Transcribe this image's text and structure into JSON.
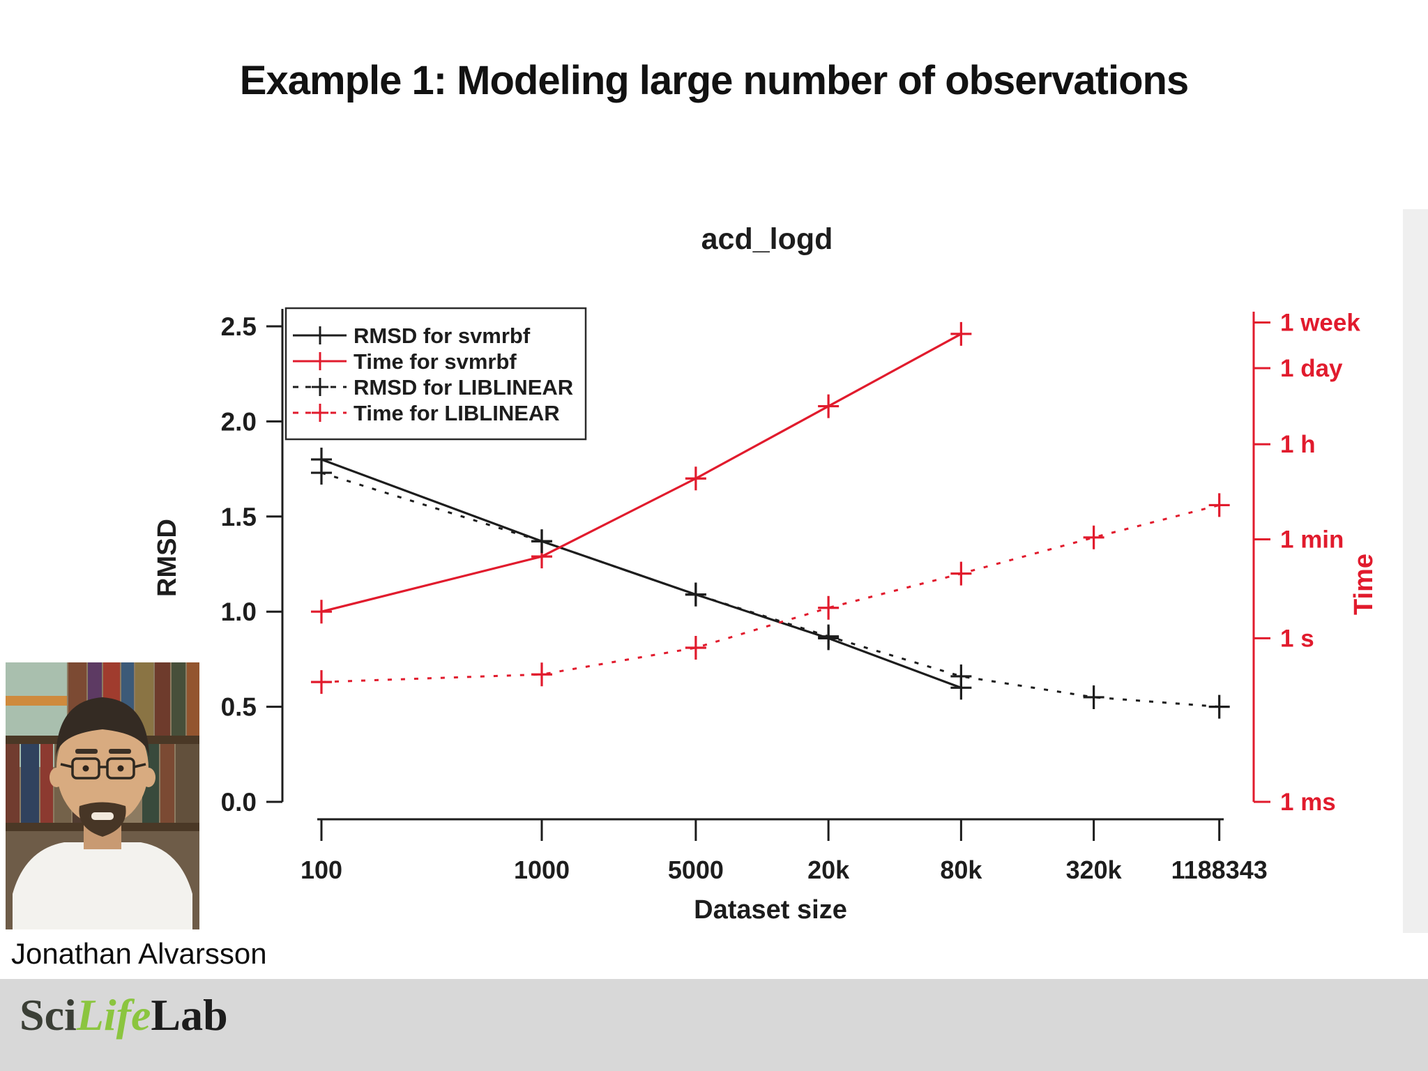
{
  "slide": {
    "title": "Example 1: Modeling large number of observations",
    "author": "Jonathan Alvarsson",
    "logo": {
      "sci": "Sci",
      "life": "Life",
      "lab": "Lab"
    }
  },
  "colors": {
    "red": "#e11b2d",
    "black": "#1d1d1d",
    "footer_gray": "#d8d8d8",
    "logo_green": "#8bc53f",
    "logo_dark": "#3b3f36"
  },
  "chart_data": {
    "type": "line",
    "title": "acd_logd",
    "xlabel": "Dataset size",
    "ylabel": "RMSD",
    "ylabel_right": "Time",
    "x_scale": "log",
    "grid": false,
    "legend_position": "top-left",
    "x_ticks": [
      {
        "label": "100",
        "value": 100
      },
      {
        "label": "1000",
        "value": 1000
      },
      {
        "label": "5000",
        "value": 5000
      },
      {
        "label": "20k",
        "value": 20000
      },
      {
        "label": "80k",
        "value": 80000
      },
      {
        "label": "320k",
        "value": 320000
      },
      {
        "label": "1188343",
        "value": 1188343
      }
    ],
    "y_ticks_left": [
      "0.0",
      "0.5",
      "1.0",
      "1.5",
      "2.0",
      "2.5"
    ],
    "y_range_left": [
      0,
      2.5
    ],
    "y_ticks_right": [
      {
        "label": "1 week",
        "axis_pos": 2.52
      },
      {
        "label": "1 day",
        "axis_pos": 2.28
      },
      {
        "label": "1 h",
        "axis_pos": 1.88
      },
      {
        "label": "1 min",
        "axis_pos": 1.38
      },
      {
        "label": "1 s",
        "axis_pos": 0.86
      },
      {
        "label": "1 ms",
        "axis_pos": 0.0
      }
    ],
    "note": "Right time axis is logarithmic; series y values below are given in left-axis-equivalent units (1 ms = 0.0, 1 s = 0.86, 1 min = 1.38, 1 h = 1.88, 1 day = 2.28, 1 week = 2.52).",
    "series": [
      {
        "name": "RMSD for svmrbf",
        "color": "black",
        "line": "solid",
        "axis": "left",
        "x": [
          100,
          1000,
          5000,
          20000,
          80000
        ],
        "y": [
          1.8,
          1.37,
          1.09,
          0.86,
          0.6
        ]
      },
      {
        "name": "Time for svmrbf",
        "color": "red",
        "line": "solid",
        "axis": "right",
        "x": [
          100,
          1000,
          5000,
          20000,
          80000
        ],
        "y": [
          1.0,
          1.29,
          1.7,
          2.08,
          2.46
        ],
        "approx_time": [
          "3 s",
          "30 s",
          "14 min",
          "5 h",
          "4 days"
        ]
      },
      {
        "name": "RMSD for LIBLINEAR",
        "color": "black",
        "line": "dashed",
        "axis": "left",
        "x": [
          100,
          1000,
          5000,
          20000,
          80000,
          320000,
          1188343
        ],
        "y": [
          1.73,
          1.37,
          1.09,
          0.87,
          0.66,
          0.55,
          0.5
        ]
      },
      {
        "name": "Time for LIBLINEAR",
        "color": "red",
        "line": "dashed",
        "axis": "right",
        "x": [
          100,
          1000,
          5000,
          20000,
          80000,
          320000,
          1188343
        ],
        "y": [
          0.63,
          0.67,
          0.81,
          1.02,
          1.2,
          1.39,
          1.56
        ],
        "approx_time": [
          "0.16 s",
          "0.22 s",
          "0.7 s",
          "3.6 s",
          "15 s",
          "1.1 min",
          "4.5 min"
        ]
      }
    ]
  }
}
